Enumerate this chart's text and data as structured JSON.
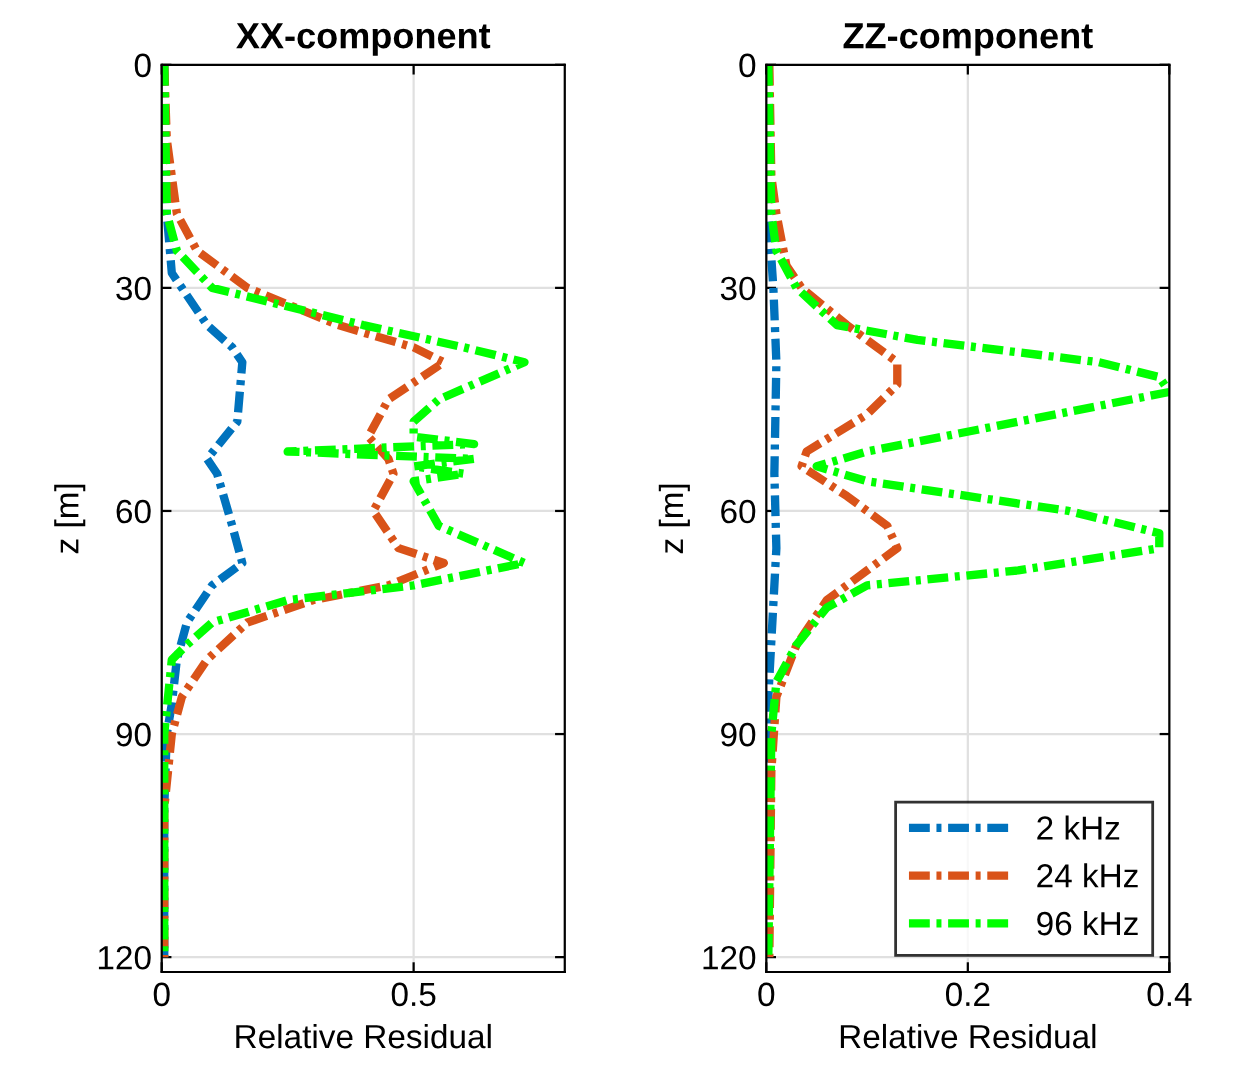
{
  "chart_data": [
    {
      "type": "line",
      "title": "XX-component",
      "xlabel": "Relative Residual",
      "ylabel": "z [m]",
      "xlim": [
        0,
        0.8
      ],
      "xticks": [
        0,
        0.5
      ],
      "ylim": [
        122,
        0
      ],
      "yticks": [
        0,
        30,
        60,
        90,
        120
      ],
      "grid": true,
      "legend": false,
      "line_style": "dashed",
      "series": [
        {
          "color": "#0072bd",
          "x": [
            0.005,
            0.01,
            0.02,
            0.04,
            0.09,
            0.14,
            0.16,
            0.15,
            0.09,
            0.11,
            0.14,
            0.16,
            0.1,
            0.05,
            0.03,
            0.02,
            0.01,
            0.005,
            0.005
          ],
          "values": [
            0,
            20,
            28,
            30,
            35,
            38,
            40,
            48,
            53,
            55,
            62,
            67,
            70,
            75,
            80,
            86,
            90,
            100,
            120
          ]
        },
        {
          "color": "#d95319",
          "x": [
            0.005,
            0.01,
            0.03,
            0.07,
            0.17,
            0.35,
            0.5,
            0.56,
            0.45,
            0.41,
            0.45,
            0.46,
            0.42,
            0.47,
            0.56,
            0.45,
            0.3,
            0.17,
            0.09,
            0.04,
            0.02,
            0.005,
            0.005
          ],
          "values": [
            0,
            10,
            20,
            25,
            30,
            35,
            38,
            40,
            45,
            50,
            53,
            55,
            60,
            65,
            67,
            70,
            72,
            75,
            80,
            85,
            90,
            100,
            120
          ]
        },
        {
          "color": "#00ff00",
          "x": [
            0.005,
            0.01,
            0.03,
            0.1,
            0.4,
            0.6,
            0.72,
            0.55,
            0.5,
            0.5,
            0.62,
            0.25,
            0.62,
            0.5,
            0.6,
            0.5,
            0.55,
            0.72,
            0.5,
            0.25,
            0.1,
            0.05,
            0.02,
            0.005,
            0.005
          ],
          "values": [
            0,
            20,
            25,
            30,
            35,
            38,
            40,
            45,
            48,
            50,
            51,
            52,
            53,
            54,
            55,
            56,
            62,
            67,
            70,
            72,
            75,
            78,
            80,
            90,
            120
          ]
        }
      ]
    },
    {
      "type": "line",
      "title": "ZZ-component",
      "xlabel": "Relative Residual",
      "ylabel": "z [m]",
      "xlim": [
        0,
        0.4
      ],
      "xticks": [
        0,
        0.2,
        0.4
      ],
      "ylim": [
        122,
        0
      ],
      "yticks": [
        0,
        30,
        60,
        90,
        120
      ],
      "grid": true,
      "legend": "bottom right",
      "line_style": "dashed",
      "series": [
        {
          "name": "2 kHz",
          "color": "#0072bd",
          "x": [
            0.0,
            0.002,
            0.007,
            0.01,
            0.008,
            0.01,
            0.006,
            0.002,
            0.0
          ],
          "values": [
            0,
            20,
            30,
            40,
            55,
            65,
            75,
            85,
            120
          ]
        },
        {
          "name": "24 kHz",
          "color": "#d95319",
          "x": [
            0.003,
            0.005,
            0.01,
            0.02,
            0.035,
            0.08,
            0.13,
            0.13,
            0.1,
            0.04,
            0.035,
            0.08,
            0.12,
            0.13,
            0.1,
            0.06,
            0.03,
            0.01,
            0.005,
            0.003
          ],
          "values": [
            0,
            15,
            20,
            27,
            30,
            35,
            40,
            43,
            47,
            52,
            54,
            58,
            62,
            65,
            68,
            72,
            78,
            85,
            95,
            120
          ]
        },
        {
          "name": "96 kHz",
          "color": "#00ff00",
          "x": [
            0.002,
            0.005,
            0.01,
            0.03,
            0.07,
            0.15,
            0.33,
            0.39,
            0.4,
            0.25,
            0.1,
            0.05,
            0.1,
            0.3,
            0.39,
            0.39,
            0.25,
            0.1,
            0.06,
            0.03,
            0.01,
            0.005,
            0.002
          ],
          "values": [
            0,
            20,
            25,
            30,
            35,
            37,
            40,
            42,
            44,
            48,
            52,
            54,
            56,
            60,
            63,
            65,
            68,
            70,
            73,
            78,
            83,
            90,
            120
          ]
        }
      ]
    }
  ]
}
